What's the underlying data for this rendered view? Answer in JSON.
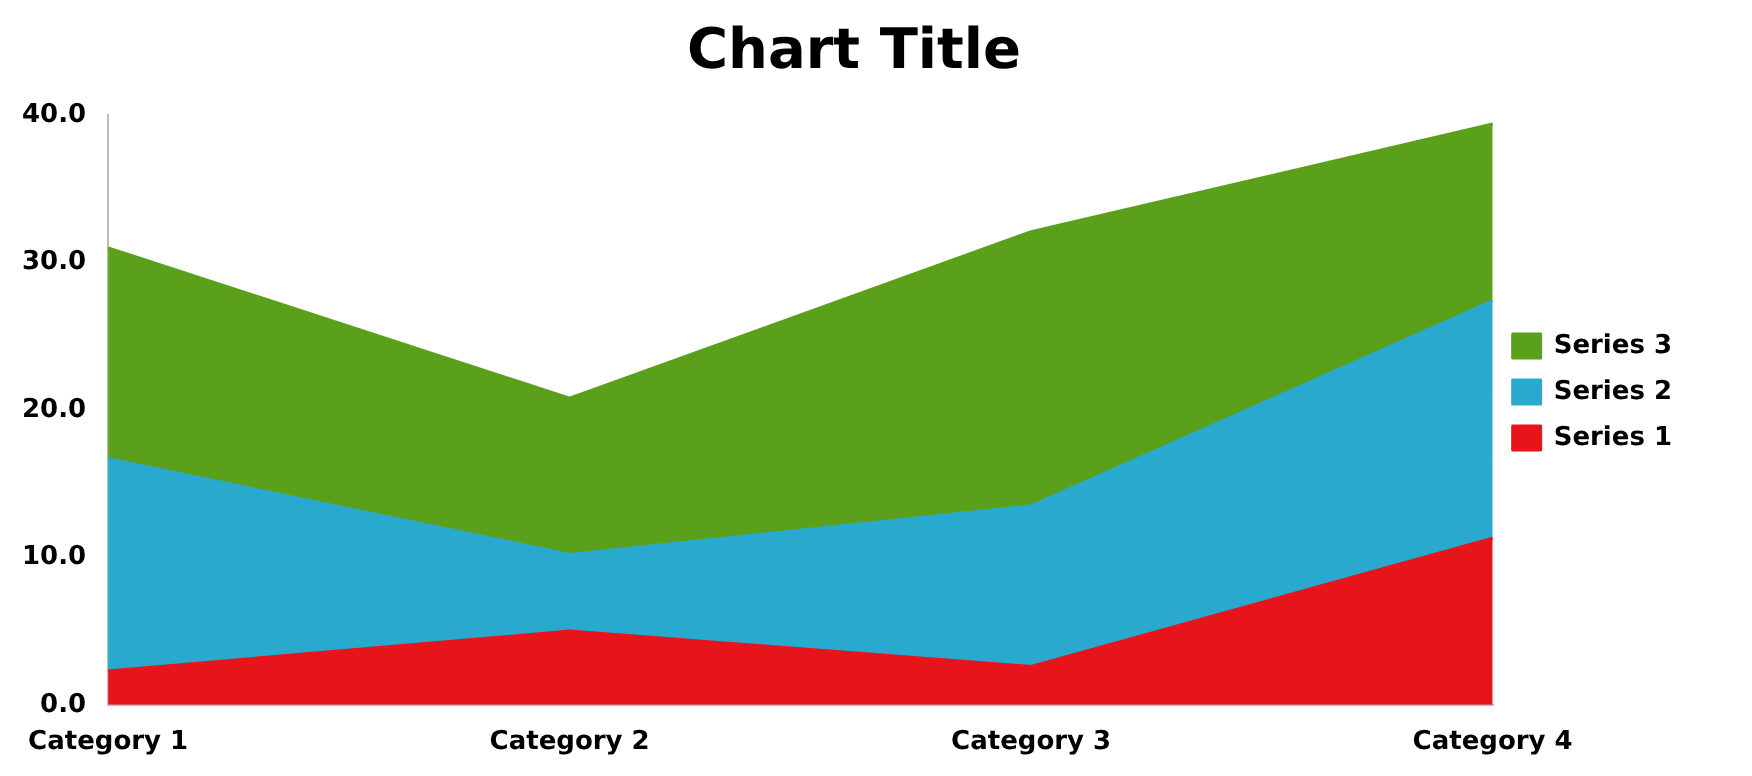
{
  "chart_data": {
    "type": "area",
    "title": "Chart Title",
    "stacked": true,
    "categories": [
      "Category 1",
      "Category 2",
      "Category 3",
      "Category 4"
    ],
    "series": [
      {
        "name": "Series 1",
        "color": "#e8141c",
        "values": [
          2.3,
          5.0,
          2.6,
          11.3
        ]
      },
      {
        "name": "Series 2",
        "color": "#2aa9cf",
        "values": [
          14.4,
          5.2,
          10.9,
          16.1
        ]
      },
      {
        "name": "Series 3",
        "color": "#5aa01a",
        "values": [
          14.3,
          10.6,
          18.6,
          12.0
        ]
      }
    ],
    "ylim": [
      0,
      40
    ],
    "yticks": [
      {
        "value": 0,
        "label": "0.0"
      },
      {
        "value": 10,
        "label": "10.0"
      },
      {
        "value": 20,
        "label": "20.0"
      },
      {
        "value": 30,
        "label": "30.0"
      },
      {
        "value": 40,
        "label": "40.0"
      }
    ],
    "grid": false,
    "legend": "right",
    "marker": "none"
  }
}
